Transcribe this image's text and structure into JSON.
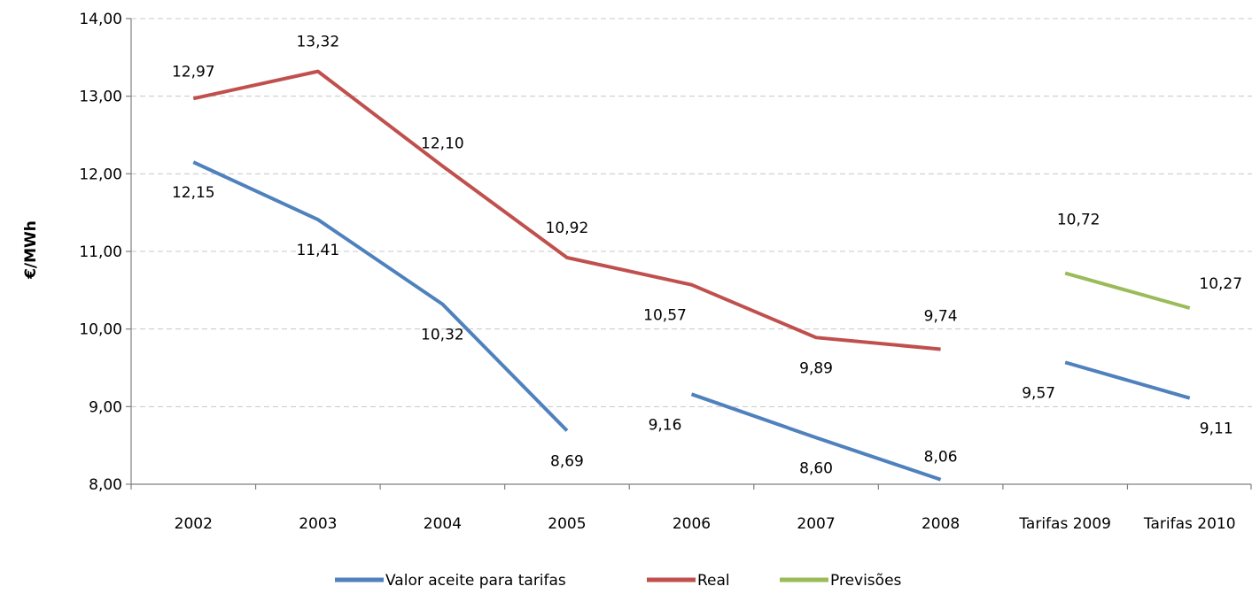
{
  "chart_data": {
    "type": "line",
    "title": "",
    "xlabel": "",
    "ylabel": "€/MWh",
    "ylim": [
      8,
      14
    ],
    "y_ticks": [
      "8,00",
      "9,00",
      "10,00",
      "11,00",
      "12,00",
      "13,00",
      "14,00"
    ],
    "categories": [
      "2002",
      "2003",
      "2004",
      "2005",
      "2006",
      "2007",
      "2008",
      "Tarifas 2009",
      "Tarifas 2010"
    ],
    "grid": true,
    "legend_position": "bottom",
    "series": [
      {
        "name": "Valor aceite para tarifas",
        "color": "#4f81bd",
        "values": [
          12.15,
          11.41,
          10.32,
          8.69,
          9.16,
          8.6,
          8.06,
          9.57,
          9.11
        ],
        "labels": [
          "12,15",
          "11,41",
          "10,32",
          "8,69",
          "9,16",
          "8,60",
          "8,06",
          "9,57",
          "9,11"
        ],
        "segments": [
          [
            0,
            3
          ],
          [
            4,
            6
          ],
          [
            7,
            8
          ]
        ]
      },
      {
        "name": "Real",
        "color": "#c0504d",
        "values": [
          12.97,
          13.32,
          12.1,
          10.92,
          10.57,
          9.89,
          9.74,
          null,
          null
        ],
        "labels": [
          "12,97",
          "13,32",
          "12,10",
          "10,92",
          "10,57",
          "9,89",
          "9,74",
          "",
          ""
        ],
        "segments": [
          [
            0,
            6
          ]
        ]
      },
      {
        "name": "Previsões",
        "color": "#9bbb59",
        "values": [
          null,
          null,
          null,
          null,
          null,
          null,
          null,
          10.72,
          10.27
        ],
        "labels": [
          "",
          "",
          "",
          "",
          "",
          "",
          "",
          "10,72",
          "10,27"
        ],
        "segments": [
          [
            7,
            8
          ]
        ]
      }
    ]
  }
}
